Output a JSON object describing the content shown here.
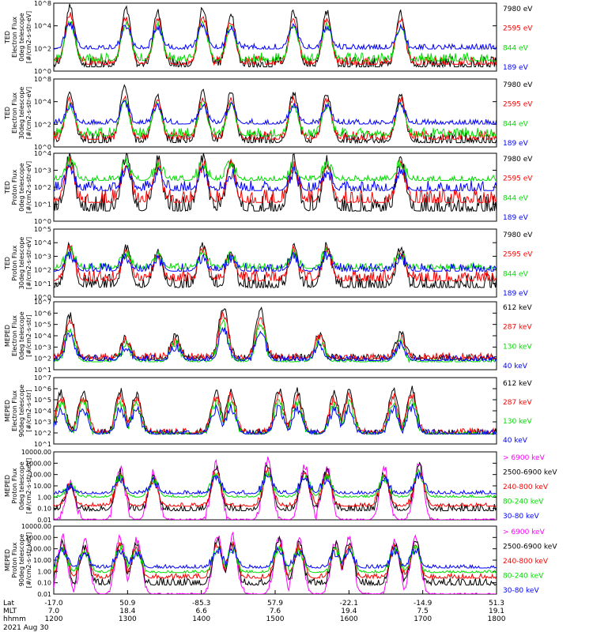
{
  "chart_data": {
    "type": "line",
    "title": "",
    "date_label": "2021 Aug 30",
    "x_axis": {
      "row_labels": [
        "Lat",
        "MLT",
        "hhmm"
      ],
      "ticks": [
        {
          "lat": "-17.0",
          "mlt": "7.0",
          "hhmm": "1200"
        },
        {
          "lat": "50.9",
          "mlt": "18.4",
          "hhmm": "1300"
        },
        {
          "lat": "-85.3",
          "mlt": "6.6",
          "hhmm": "1400"
        },
        {
          "lat": "57.9",
          "mlt": "7.6",
          "hhmm": "1500"
        },
        {
          "lat": "-22.1",
          "mlt": "19.4",
          "hhmm": "1600"
        },
        {
          "lat": "-14.9",
          "mlt": "7.5",
          "hhmm": "1700"
        },
        {
          "lat": "51.3",
          "mlt": "19.1",
          "hhmm": "1800"
        }
      ],
      "xlim": [
        1200,
        1800
      ]
    },
    "panels": [
      {
        "ylabel_lines": [
          "TED",
          "Electron Flux",
          "0deg telescope",
          "[#/cm2-s-str-eV]"
        ],
        "scale": "log",
        "ylim": [
          1,
          100000000
        ],
        "tick_labels": [
          "10^8",
          "10^4",
          "10^2",
          "10^0"
        ],
        "legend": [
          "7980 eV",
          "2595 eV",
          "844 eV",
          "189 eV"
        ],
        "series": [
          {
            "name": "7980 eV",
            "color": "#000000",
            "baseline_exp": 0.5,
            "noise": 1.2
          },
          {
            "name": "2595 eV",
            "color": "#ff0000",
            "baseline_exp": 0.8,
            "noise": 1.0
          },
          {
            "name": "844 eV",
            "color": "#00dd00",
            "baseline_exp": 1.2,
            "noise": 1.0
          },
          {
            "name": "189 eV",
            "color": "#0000ff",
            "baseline_exp": 2.6,
            "noise": 0.6
          }
        ],
        "peaks": [
          {
            "t": 1222,
            "exp": 7.6
          },
          {
            "t": 1298,
            "exp": 7.3
          },
          {
            "t": 1341,
            "exp": 7.0
          },
          {
            "t": 1402,
            "exp": 7.4
          },
          {
            "t": 1440,
            "exp": 6.7
          },
          {
            "t": 1525,
            "exp": 7.0
          },
          {
            "t": 1570,
            "exp": 7.0
          },
          {
            "t": 1670,
            "exp": 7.0
          }
        ]
      },
      {
        "ylabel_lines": [
          "TED",
          "Electron Flux",
          "30deg telescope",
          "[#/cm2-s-str-eV]"
        ],
        "scale": "log",
        "ylim": [
          1,
          100000000
        ],
        "tick_labels": [
          "10^8",
          "10^4",
          "10^2",
          "10^0"
        ],
        "legend": [
          "7980 eV",
          "2595 eV",
          "844 eV",
          "189 eV"
        ],
        "series": [
          {
            "name": "7980 eV",
            "color": "#000000",
            "baseline_exp": 0.5,
            "noise": 1.2
          },
          {
            "name": "2595 eV",
            "color": "#ff0000",
            "baseline_exp": 0.9,
            "noise": 1.0
          },
          {
            "name": "844 eV",
            "color": "#00dd00",
            "baseline_exp": 1.3,
            "noise": 1.0
          },
          {
            "name": "189 eV",
            "color": "#0000ff",
            "baseline_exp": 2.7,
            "noise": 0.6
          }
        ],
        "peaks": [
          {
            "t": 1222,
            "exp": 6.3
          },
          {
            "t": 1296,
            "exp": 6.9
          },
          {
            "t": 1340,
            "exp": 6.2
          },
          {
            "t": 1402,
            "exp": 6.5
          },
          {
            "t": 1440,
            "exp": 6.4
          },
          {
            "t": 1525,
            "exp": 6.4
          },
          {
            "t": 1570,
            "exp": 6.2
          },
          {
            "t": 1670,
            "exp": 6.4
          }
        ]
      },
      {
        "ylabel_lines": [
          "TED",
          "Proton Flux",
          "0deg telescope",
          "[#/cm2-s-str-eV]"
        ],
        "scale": "log",
        "ylim": [
          1,
          10000
        ],
        "tick_labels": [
          "10^4",
          "10^3",
          "10^2",
          "10^1",
          "10^0"
        ],
        "legend": [
          "7980 eV",
          "2595 eV",
          "844 eV",
          "189 eV"
        ],
        "series": [
          {
            "name": "7980 eV",
            "color": "#000000",
            "baseline_exp": 0.6,
            "noise": 1.0
          },
          {
            "name": "2595 eV",
            "color": "#ff0000",
            "baseline_exp": 1.1,
            "noise": 0.8
          },
          {
            "name": "844 eV",
            "color": "#00dd00",
            "baseline_exp": 2.4,
            "noise": 0.3
          },
          {
            "name": "189 eV",
            "color": "#0000ff",
            "baseline_exp": 1.8,
            "noise": 0.6
          }
        ],
        "peaks": [
          {
            "t": 1222,
            "exp": 3.9
          },
          {
            "t": 1298,
            "exp": 3.9
          },
          {
            "t": 1341,
            "exp": 3.6
          },
          {
            "t": 1402,
            "exp": 3.7
          },
          {
            "t": 1440,
            "exp": 3.6
          },
          {
            "t": 1525,
            "exp": 3.6
          },
          {
            "t": 1570,
            "exp": 3.6
          },
          {
            "t": 1670,
            "exp": 3.6
          }
        ]
      },
      {
        "ylabel_lines": [
          "TED",
          "Proton Flux",
          "30deg telescope",
          "[#/cm2-s-str-eV]"
        ],
        "scale": "log",
        "ylim": [
          1,
          100000
        ],
        "tick_labels": [
          "10^5",
          "10^4",
          "10^3",
          "10^2",
          "10^1",
          "10^0"
        ],
        "legend": [
          "7980 eV",
          "2595 eV",
          "844 eV",
          "189 eV"
        ],
        "series": [
          {
            "name": "7980 eV",
            "color": "#000000",
            "baseline_exp": 0.7,
            "noise": 1.0
          },
          {
            "name": "2595 eV",
            "color": "#ff0000",
            "baseline_exp": 1.2,
            "noise": 0.8
          },
          {
            "name": "844 eV",
            "color": "#00dd00",
            "baseline_exp": 2.1,
            "noise": 0.4
          },
          {
            "name": "189 eV",
            "color": "#0000ff",
            "baseline_exp": 1.9,
            "noise": 0.6
          }
        ],
        "peaks": [
          {
            "t": 1222,
            "exp": 3.9
          },
          {
            "t": 1298,
            "exp": 3.6
          },
          {
            "t": 1341,
            "exp": 3.4
          },
          {
            "t": 1402,
            "exp": 3.7
          },
          {
            "t": 1440,
            "exp": 3.3
          },
          {
            "t": 1525,
            "exp": 3.7
          },
          {
            "t": 1570,
            "exp": 3.8
          },
          {
            "t": 1670,
            "exp": 3.6
          }
        ]
      },
      {
        "ylabel_lines": [
          "MEPED",
          "Electron Flux",
          "0deg telescope",
          "[#/cm2-s-str]"
        ],
        "scale": "log",
        "ylim": [
          10,
          10000000
        ],
        "tick_labels": [
          "10^7",
          "10^6",
          "10^5",
          "10^4",
          "10^3",
          "10^2",
          "10^1"
        ],
        "legend": [
          "612 keV",
          "287 keV",
          "130 keV",
          "40 keV"
        ],
        "series": [
          {
            "name": "612 keV",
            "color": "#000000",
            "baseline_exp": 1.9,
            "noise": 0.5
          },
          {
            "name": "287 keV",
            "color": "#ff0000",
            "baseline_exp": 2.0,
            "noise": 0.5
          },
          {
            "name": "130 keV",
            "color": "#00dd00",
            "baseline_exp": 1.7,
            "noise": 0.2
          },
          {
            "name": "40 keV",
            "color": "#0000ff",
            "baseline_exp": 1.8,
            "noise": 0.5
          }
        ],
        "peaks": [
          {
            "t": 1222,
            "exp": 5.8
          },
          {
            "t": 1298,
            "exp": 3.8
          },
          {
            "t": 1365,
            "exp": 3.9
          },
          {
            "t": 1430,
            "exp": 6.6
          },
          {
            "t": 1480,
            "exp": 6.4
          },
          {
            "t": 1560,
            "exp": 4.2
          },
          {
            "t": 1670,
            "exp": 4.2
          }
        ]
      },
      {
        "ylabel_lines": [
          "MEPED",
          "Electron Flux",
          "90deg telescope",
          "[#/cm2-s-str]"
        ],
        "scale": "log",
        "ylim": [
          10,
          10000000
        ],
        "tick_labels": [
          "10^7",
          "10^6",
          "10^5",
          "10^4",
          "10^3",
          "10^2",
          "10^1"
        ],
        "legend": [
          "612 keV",
          "287 keV",
          "130 keV",
          "40 keV"
        ],
        "series": [
          {
            "name": "612 keV",
            "color": "#000000",
            "baseline_exp": 1.9,
            "noise": 0.5
          },
          {
            "name": "287 keV",
            "color": "#ff0000",
            "baseline_exp": 2.0,
            "noise": 0.4
          },
          {
            "name": "130 keV",
            "color": "#00dd00",
            "baseline_exp": 1.9,
            "noise": 0.2
          },
          {
            "name": "40 keV",
            "color": "#0000ff",
            "baseline_exp": 1.9,
            "noise": 0.4
          }
        ],
        "peaks": [
          {
            "t": 1210,
            "exp": 5.7
          },
          {
            "t": 1240,
            "exp": 5.8
          },
          {
            "t": 1290,
            "exp": 5.8
          },
          {
            "t": 1312,
            "exp": 5.6
          },
          {
            "t": 1420,
            "exp": 5.8
          },
          {
            "t": 1440,
            "exp": 5.9
          },
          {
            "t": 1505,
            "exp": 5.9
          },
          {
            "t": 1530,
            "exp": 5.8
          },
          {
            "t": 1580,
            "exp": 5.6
          },
          {
            "t": 1600,
            "exp": 5.8
          },
          {
            "t": 1660,
            "exp": 5.8
          },
          {
            "t": 1685,
            "exp": 5.9
          }
        ]
      },
      {
        "ylabel_lines": [
          "MEPED",
          "Proton Flux",
          "0deg telescope",
          "[#/cm2-s-str-keV]"
        ],
        "scale": "log",
        "ylim": [
          0.01,
          10000
        ],
        "tick_labels": [
          "10000.00",
          "1000.00",
          "100.00",
          "10.00",
          "1.00",
          "0.10",
          "0.01"
        ],
        "legend": [
          "> 6900 keV",
          "2500-6900 keV",
          "240-800 keV",
          "80-240 keV",
          "30-80 keV"
        ],
        "series": [
          {
            "name": "> 6900 keV",
            "color": "#ff00ff",
            "baseline_exp": -2.0,
            "noise": 0.1
          },
          {
            "name": "2500-6900 keV",
            "color": "#000000",
            "baseline_exp": -1.2,
            "noise": 0.6
          },
          {
            "name": "240-800 keV",
            "color": "#ff0000",
            "baseline_exp": -0.8,
            "noise": 0.3
          },
          {
            "name": "80-240 keV",
            "color": "#00dd00",
            "baseline_exp": 0.0,
            "noise": 0.2
          },
          {
            "name": "30-80 keV",
            "color": "#0000ff",
            "baseline_exp": 0.3,
            "noise": 0.3
          }
        ],
        "peaks": [
          {
            "t": 1222,
            "exp": 1.4
          },
          {
            "t": 1290,
            "exp": 2.6
          },
          {
            "t": 1335,
            "exp": 2.2
          },
          {
            "t": 1420,
            "exp": 3.0
          },
          {
            "t": 1490,
            "exp": 3.2
          },
          {
            "t": 1540,
            "exp": 2.9
          },
          {
            "t": 1570,
            "exp": 2.7
          },
          {
            "t": 1648,
            "exp": 2.5
          },
          {
            "t": 1695,
            "exp": 3.2
          }
        ]
      },
      {
        "ylabel_lines": [
          "MEPED",
          "Proton Flux",
          "90deg telescope",
          "[#/cm2-s-str-keV]"
        ],
        "scale": "log",
        "ylim": [
          0.01,
          10000
        ],
        "tick_labels": [
          "10000.00",
          "1000.00",
          "100.00",
          "10.00",
          "1.00",
          "0.10",
          "0.01"
        ],
        "legend": [
          "> 6900 keV",
          "2500-6900 keV",
          "240-800 keV",
          "80-240 keV",
          "30-80 keV"
        ],
        "series": [
          {
            "name": "> 6900 keV",
            "color": "#ff00ff",
            "baseline_exp": -2.0,
            "noise": 0.1
          },
          {
            "name": "2500-6900 keV",
            "color": "#000000",
            "baseline_exp": -1.2,
            "noise": 0.6
          },
          {
            "name": "240-800 keV",
            "color": "#ff0000",
            "baseline_exp": -0.6,
            "noise": 0.4
          },
          {
            "name": "80-240 keV",
            "color": "#00dd00",
            "baseline_exp": -0.1,
            "noise": 0.2
          },
          {
            "name": "30-80 keV",
            "color": "#0000ff",
            "baseline_exp": 0.3,
            "noise": 0.3
          }
        ],
        "peaks": [
          {
            "t": 1212,
            "exp": 3.0
          },
          {
            "t": 1242,
            "exp": 2.7
          },
          {
            "t": 1290,
            "exp": 3.1
          },
          {
            "t": 1312,
            "exp": 2.8
          },
          {
            "t": 1422,
            "exp": 3.2
          },
          {
            "t": 1442,
            "exp": 3.1
          },
          {
            "t": 1505,
            "exp": 3.2
          },
          {
            "t": 1532,
            "exp": 2.9
          },
          {
            "t": 1582,
            "exp": 2.8
          },
          {
            "t": 1600,
            "exp": 3.1
          },
          {
            "t": 1662,
            "exp": 2.9
          },
          {
            "t": 1690,
            "exp": 3.2
          }
        ]
      }
    ]
  }
}
